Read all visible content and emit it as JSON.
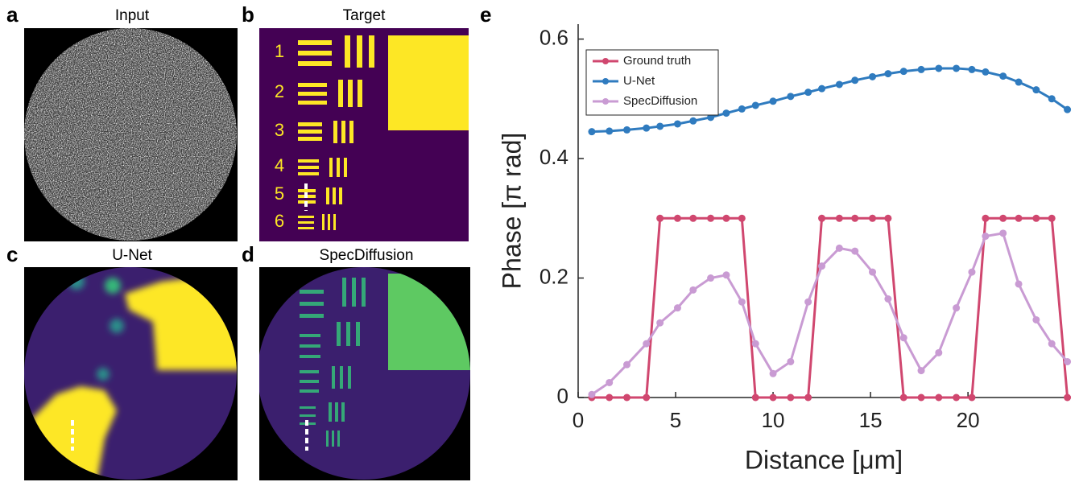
{
  "panels": [
    {
      "letter": "a",
      "title": "Input"
    },
    {
      "letter": "b",
      "title": "Target"
    },
    {
      "letter": "c",
      "title": "U-Net"
    },
    {
      "letter": "d",
      "title": "SpecDiffusion"
    }
  ],
  "target_labels": [
    "1",
    "2",
    "3",
    "4",
    "5",
    "6"
  ],
  "chart_letter": "e",
  "chart_data": {
    "type": "line",
    "x_label": "Distance [μm]",
    "y_label": "Phase [π rad]",
    "x": [
      0.7,
      1.6,
      2.5,
      3.5,
      4.2,
      5.1,
      5.9,
      6.8,
      7.6,
      8.4,
      9.1,
      10.0,
      10.9,
      11.8,
      12.5,
      13.4,
      14.2,
      15.1,
      15.9,
      16.7,
      17.6,
      18.5,
      19.4,
      20.2,
      20.9,
      21.8,
      22.6,
      23.5,
      24.3,
      25.1
    ],
    "series": [
      {
        "name": "Ground truth",
        "color": "#d0476f",
        "values": [
          0,
          0,
          0,
          0,
          0.3,
          0.3,
          0.3,
          0.3,
          0.3,
          0.3,
          0,
          0,
          0,
          0,
          0.3,
          0.3,
          0.3,
          0.3,
          0.3,
          0,
          0,
          0,
          0,
          0,
          0.3,
          0.3,
          0.3,
          0.3,
          0.3,
          0
        ]
      },
      {
        "name": "U-Net",
        "color": "#2f7bbf",
        "values": [
          0.445,
          0.446,
          0.448,
          0.451,
          0.454,
          0.458,
          0.463,
          0.469,
          0.476,
          0.483,
          0.489,
          0.496,
          0.504,
          0.511,
          0.517,
          0.524,
          0.531,
          0.537,
          0.542,
          0.546,
          0.549,
          0.551,
          0.551,
          0.549,
          0.545,
          0.538,
          0.528,
          0.515,
          0.5,
          0.482
        ]
      },
      {
        "name": "SpecDiffusion",
        "color": "#c99bd3",
        "values": [
          0.005,
          0.025,
          0.055,
          0.09,
          0.125,
          0.15,
          0.18,
          0.2,
          0.205,
          0.16,
          0.09,
          0.04,
          0.06,
          0.16,
          0.22,
          0.25,
          0.245,
          0.21,
          0.165,
          0.1,
          0.045,
          0.075,
          0.15,
          0.21,
          0.27,
          0.275,
          0.19,
          0.13,
          0.09,
          0.06
        ]
      }
    ],
    "xlim": [
      0,
      25.2
    ],
    "ylim": [
      0,
      0.625
    ],
    "xticks": [
      0,
      5,
      10,
      15,
      20
    ],
    "yticks": [
      0,
      0.2,
      0.4,
      0.6
    ],
    "legend": "upper left"
  }
}
